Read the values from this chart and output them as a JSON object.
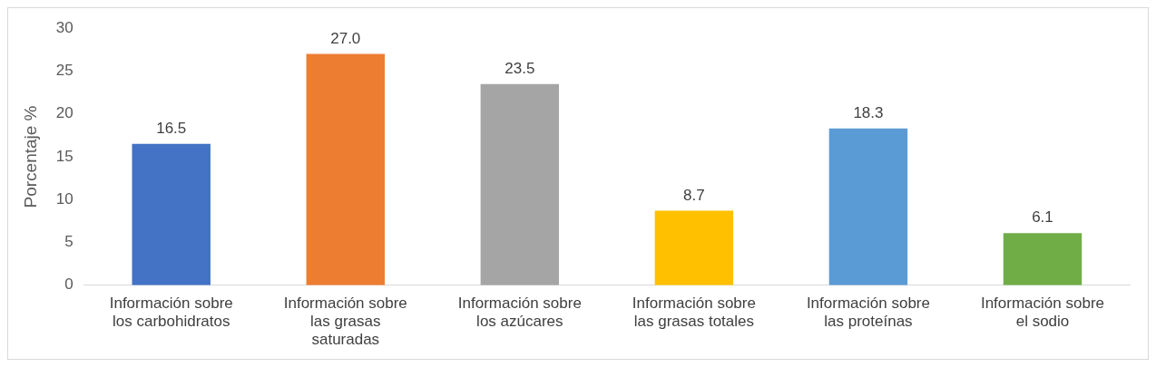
{
  "chart_data": {
    "type": "bar",
    "ylabel": "Porcentaje %",
    "categories": [
      "Información sobre los carbohidratos",
      "Información sobre las grasas saturadas",
      "Información sobre los azúcares",
      "Información sobre las grasas totales",
      "Información sobre las proteínas",
      "Información sobre el sodio"
    ],
    "values": [
      16.5,
      27.0,
      23.5,
      8.7,
      18.3,
      6.1
    ],
    "colors": [
      "#4472c4",
      "#ed7d31",
      "#a5a5a5",
      "#ffc000",
      "#5b9bd5",
      "#70ad47"
    ],
    "value_labels": [
      "16.5",
      "27.0",
      "23.5",
      "8.7",
      "18.3",
      "6.1"
    ],
    "ylim": [
      0,
      30
    ],
    "yticks": [
      0,
      5,
      10,
      15,
      20,
      25,
      30
    ],
    "grid": false,
    "legend": false
  }
}
